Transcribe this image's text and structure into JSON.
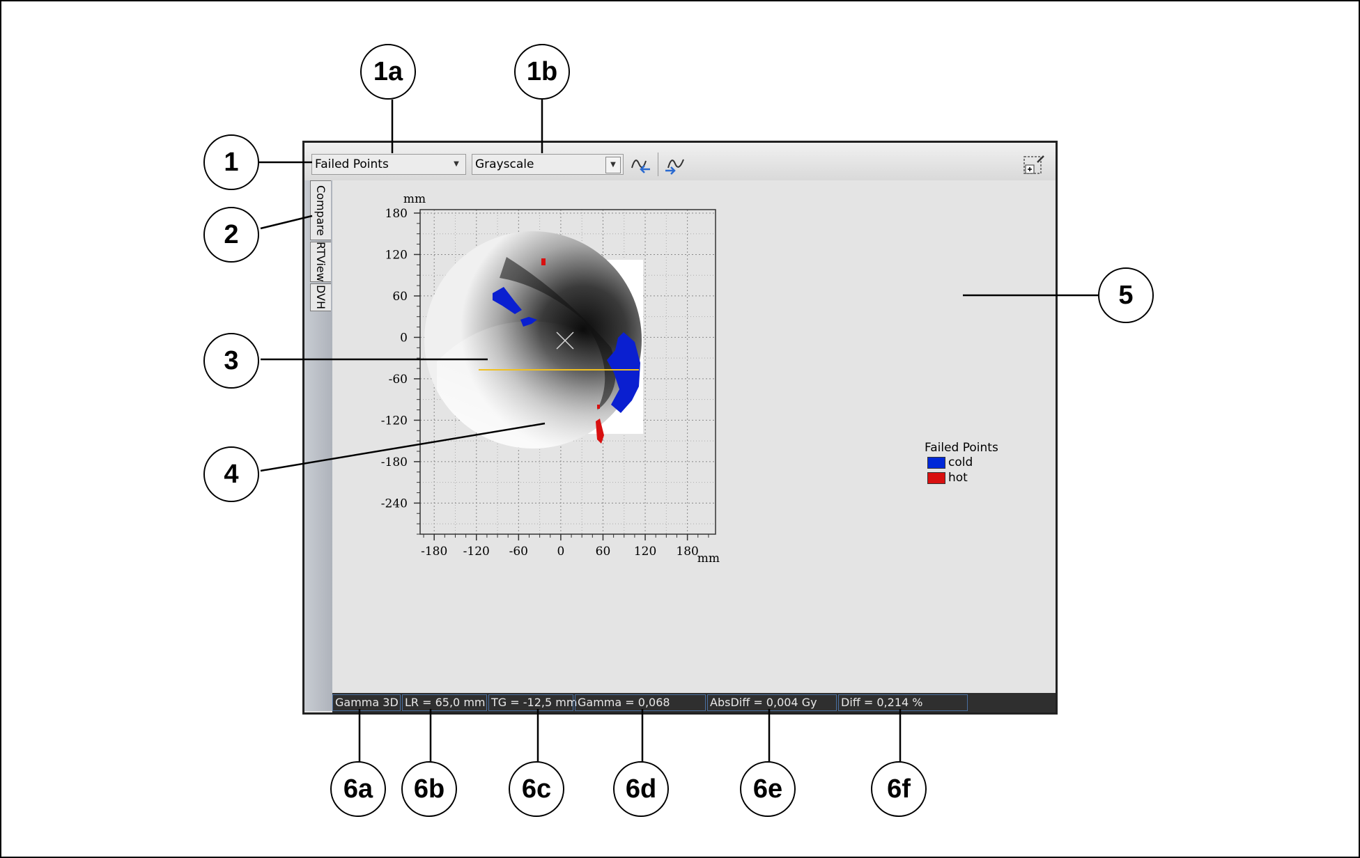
{
  "toolbar": {
    "view_mode": "Failed Points",
    "color_map": "Grayscale",
    "prev_icon": "curve-back-icon",
    "next_icon": "curve-forward-icon",
    "corner_icon": "zoom-region-icon"
  },
  "side_tabs": [
    "Compare",
    "RTView",
    "DVH"
  ],
  "plot": {
    "y_unit": "mm",
    "x_unit": "mm",
    "y_ticks": [
      "180",
      "120",
      "60",
      "0",
      "-60",
      "-120",
      "-180",
      "-240"
    ],
    "x_ticks": [
      "-180",
      "-120",
      "-60",
      "0",
      "60",
      "120",
      "180"
    ],
    "xlim": [
      -200,
      220
    ],
    "ylim": [
      -285,
      185
    ]
  },
  "legend": {
    "title": "Failed Points",
    "items": [
      {
        "label": "cold",
        "color": "#0028d8"
      },
      {
        "label": "hot",
        "color": "#d81010"
      }
    ]
  },
  "status": {
    "mode": "Gamma 3D",
    "lr": "LR = 65,0 mm",
    "tg": "TG = -12,5 mm",
    "gamma": "Gamma = 0,068",
    "absdiff": "AbsDiff = 0,004 Gy",
    "diff": "Diff = 0,214 %"
  },
  "callouts": {
    "c1": "1",
    "c1a": "1a",
    "c1b": "1b",
    "c2": "2",
    "c3": "3",
    "c4": "4",
    "c5": "5",
    "c6a": "6a",
    "c6b": "6b",
    "c6c": "6c",
    "c6d": "6d",
    "c6e": "6e",
    "c6f": "6f"
  }
}
